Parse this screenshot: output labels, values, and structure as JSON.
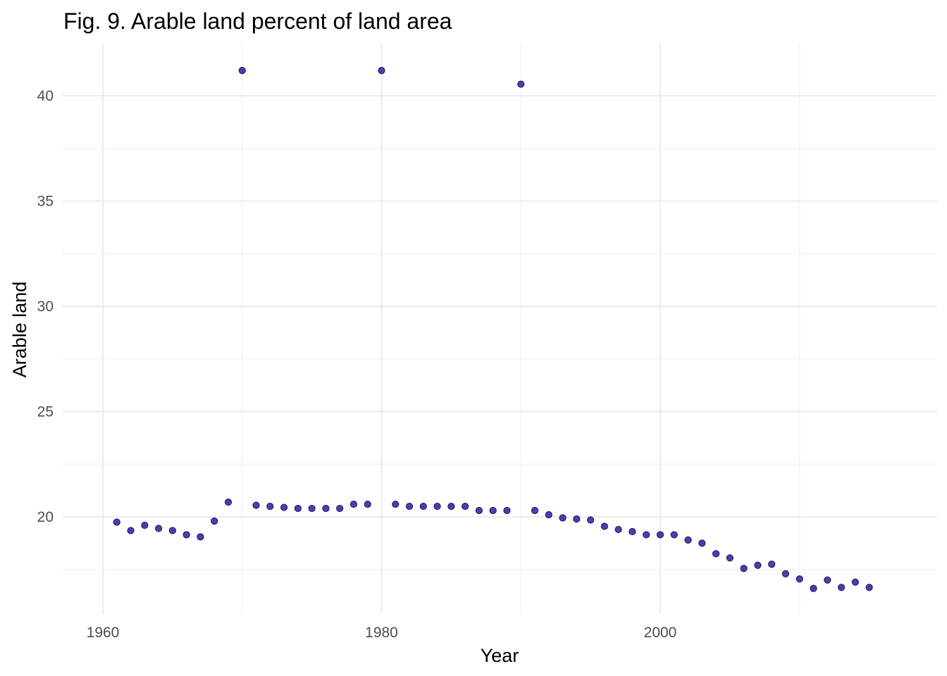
{
  "chart_data": {
    "type": "scatter",
    "title": "Fig. 9. Arable land percent of land area",
    "xlabel": "Year",
    "ylabel": "Arable land",
    "xlim": [
      1961,
      2015
    ],
    "ylim": [
      16.6,
      41.2
    ],
    "x_ticks": [
      1960,
      1980,
      2000
    ],
    "y_ticks": [
      20,
      25,
      30,
      35,
      40
    ],
    "x_minor_ticks": [
      1970,
      1990,
      2010
    ],
    "y_minor_ticks": [
      17.5,
      22.5,
      27.5,
      32.5,
      37.5
    ],
    "grid": true,
    "point_color": "#4a3fb0",
    "point_stroke": "#1a1550",
    "series": [
      {
        "name": "Arable land",
        "x": [
          1961,
          1962,
          1963,
          1964,
          1965,
          1966,
          1967,
          1968,
          1969,
          1970,
          1971,
          1972,
          1973,
          1974,
          1975,
          1976,
          1977,
          1978,
          1979,
          1980,
          1981,
          1982,
          1983,
          1984,
          1985,
          1986,
          1987,
          1988,
          1989,
          1990,
          1991,
          1992,
          1993,
          1994,
          1995,
          1996,
          1997,
          1998,
          1999,
          2000,
          2001,
          2002,
          2003,
          2004,
          2005,
          2006,
          2007,
          2008,
          2009,
          2010,
          2011,
          2012,
          2013,
          2014,
          2015
        ],
        "y": [
          19.75,
          19.35,
          19.6,
          19.45,
          19.35,
          19.15,
          19.05,
          19.8,
          20.7,
          41.2,
          20.55,
          20.5,
          20.45,
          20.4,
          20.4,
          20.4,
          20.4,
          20.6,
          20.6,
          41.2,
          20.6,
          20.5,
          20.5,
          20.5,
          20.5,
          20.5,
          20.3,
          20.3,
          20.3,
          40.55,
          20.3,
          20.1,
          19.95,
          19.9,
          19.85,
          19.55,
          19.4,
          19.3,
          19.15,
          19.15,
          19.15,
          18.9,
          18.75,
          18.25,
          18.05,
          17.55,
          17.7,
          17.75,
          17.3,
          17.05,
          16.6,
          17.0,
          16.65,
          16.9,
          16.65
        ]
      }
    ]
  }
}
